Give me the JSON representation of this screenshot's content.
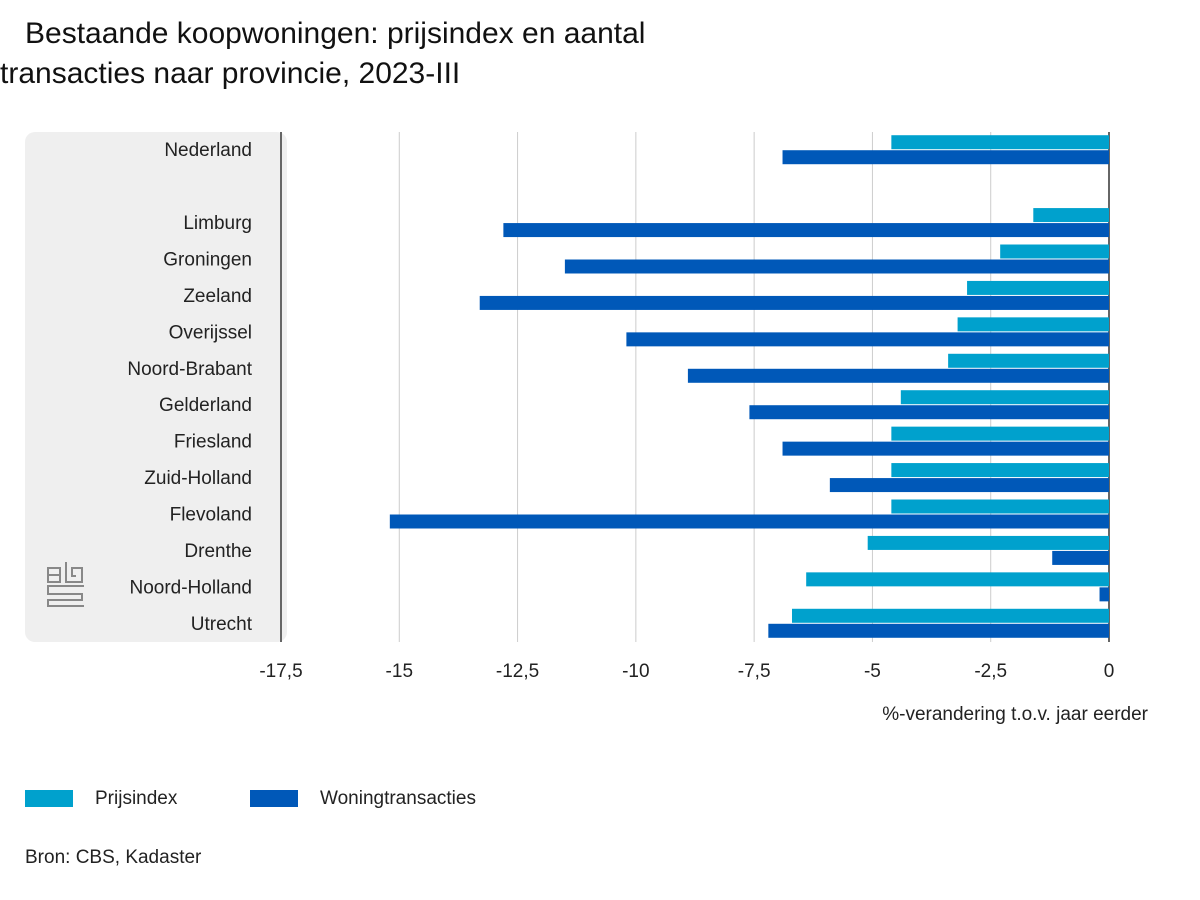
{
  "chart_data": {
    "type": "hbar",
    "title": "Bestaande koopwoningen: prijsindex en aantal transacties naar provincie, 2023-III",
    "x_label": "%-verandering t.o.v. jaar eerder",
    "source": "Bron: CBS, Kadaster",
    "categories": [
      "Nederland",
      null,
      "Limburg",
      "Groningen",
      "Zeeland",
      "Overijssel",
      "Noord-Brabant",
      "Gelderland",
      "Friesland",
      "Zuid-Holland",
      "Flevoland",
      "Drenthe",
      "Noord-Holland",
      "Utrecht"
    ],
    "series": [
      {
        "name": "Prijsindex",
        "color": "#00a1cd",
        "values": [
          -4.6,
          null,
          -1.6,
          -2.3,
          -3.0,
          -3.2,
          -3.4,
          -4.4,
          -4.6,
          -4.6,
          -4.6,
          -5.1,
          -6.4,
          -6.7
        ]
      },
      {
        "name": "Woningtransacties",
        "color": "#0058b8",
        "values": [
          -6.9,
          null,
          -12.8,
          -11.5,
          -13.3,
          -10.2,
          -8.9,
          -7.6,
          -6.9,
          -5.9,
          -15.2,
          -1.2,
          -0.2,
          -7.2
        ]
      }
    ],
    "xlim": [
      -17.5,
      0
    ],
    "xticks": [
      {
        "value": -17.5,
        "label": "-17,5"
      },
      -15,
      {
        "value": -12.5,
        "label": "-12,5"
      },
      -10,
      {
        "value": -7.5,
        "label": "-7,5"
      },
      -5,
      {
        "value": -2.5,
        "label": "-2,5"
      },
      0
    ],
    "grid": true
  }
}
